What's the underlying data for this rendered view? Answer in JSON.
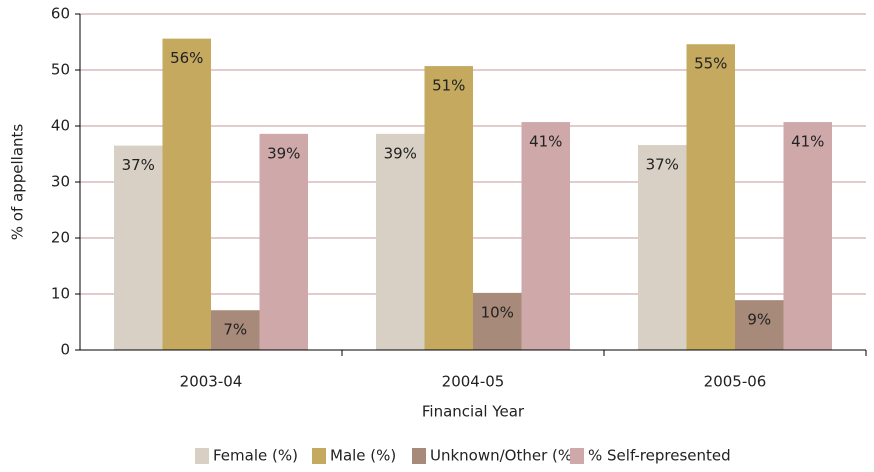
{
  "chart_data": {
    "type": "bar",
    "ylabel": "% of appellants",
    "xlabel": "Financial Year",
    "categories": [
      "2003-04",
      "2004-05",
      "2005-06"
    ],
    "series": [
      {
        "name": "Female (%)",
        "color": "#d9d0c5",
        "values": [
          36.5,
          38.6,
          36.6
        ],
        "value_labels": [
          "37%",
          "39%",
          "37%"
        ]
      },
      {
        "name": "Male (%)",
        "color": "#c4a95f",
        "values": [
          55.6,
          50.7,
          54.6
        ],
        "value_labels": [
          "56%",
          "51%",
          "55%"
        ]
      },
      {
        "name": "Unknown/Other (%)",
        "color": "#a88a7a",
        "values": [
          7.1,
          10.2,
          8.9
        ],
        "value_labels": [
          "7%",
          "10%",
          "9%"
        ]
      },
      {
        "name": "% Self-represented",
        "color": "#cfa9aa",
        "values": [
          38.6,
          40.7,
          40.7
        ],
        "value_labels": [
          "39%",
          "41%",
          "41%"
        ]
      }
    ],
    "ylim": [
      0,
      60
    ],
    "yticks": [
      0,
      10,
      20,
      30,
      40,
      50,
      60
    ],
    "grid": true,
    "legend": "bottom"
  }
}
